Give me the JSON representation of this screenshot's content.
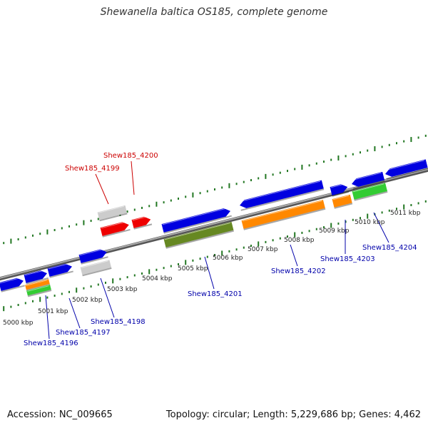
{
  "title": "Shewanella baltica OS185, complete genome",
  "footer": {
    "accession": "Accession: NC_009665",
    "summary": "Topology: circular; Length: 5,229,686 bp; Genes: 4,462"
  },
  "colors": {
    "forward_cds": "#0000e0",
    "reverse_cds": "#0000e0",
    "rna": "#ff8800",
    "green": "#33cc33",
    "olive": "#668822",
    "gray": "#cccccc",
    "red": "#ee0000",
    "label_blue": "#0000aa",
    "label_red": "#cc0000",
    "tick": "#227722",
    "backbone": "#888888"
  },
  "kbp_labels": [
    "5000 kbp",
    "5001 kbp",
    "5002 kbp",
    "5003 kbp",
    "5004 kbp",
    "5005 kbp",
    "5006 kbp",
    "5007 kbp",
    "5008 kbp",
    "5009 kbp",
    "5010 kbp",
    "5011 kbp"
  ],
  "gene_labels": [
    {
      "text": "Shew185_4196",
      "color": "blue"
    },
    {
      "text": "Shew185_4197",
      "color": "blue"
    },
    {
      "text": "Shew185_4198",
      "color": "blue"
    },
    {
      "text": "Shew185_4199",
      "color": "red"
    },
    {
      "text": "Shew185_4200",
      "color": "red"
    },
    {
      "text": "Shew185_4201",
      "color": "blue"
    },
    {
      "text": "Shew185_4202",
      "color": "blue"
    },
    {
      "text": "Shew185_4203",
      "color": "blue"
    },
    {
      "text": "Shew185_4204",
      "color": "blue"
    }
  ]
}
